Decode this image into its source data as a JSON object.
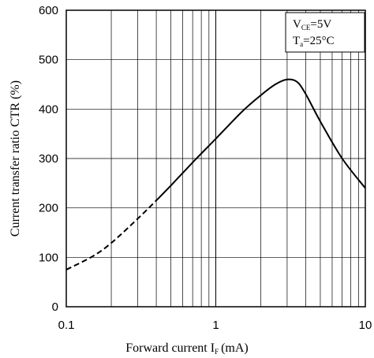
{
  "chart_data": {
    "type": "line",
    "x_scale": "log",
    "xlabel": "Forward current I",
    "xlabel_sub": "F",
    "xlabel_unit": "(mA)",
    "ylabel": "Current transfer ratio CTR (%)",
    "xlim": [
      0.1,
      10
    ],
    "ylim": [
      0,
      600
    ],
    "x_ticks": [
      0.1,
      1,
      10
    ],
    "x_tick_labels": [
      "0.1",
      "1",
      "10"
    ],
    "y_ticks": [
      0,
      100,
      200,
      300,
      400,
      500,
      600
    ],
    "y_tick_labels": [
      "0",
      "100",
      "200",
      "300",
      "400",
      "500",
      "600"
    ],
    "grid": true,
    "legend_position": "top-right",
    "conditions": [
      {
        "symbol": "V",
        "sub": "CE",
        "value": "=5V"
      },
      {
        "symbol": "T",
        "sub": "a",
        "value": "=25°C"
      }
    ],
    "series": [
      {
        "style": "dashed",
        "x": [
          0.1,
          0.15,
          0.2,
          0.3,
          0.4
        ],
        "y": [
          75,
          102,
          129,
          178,
          215
        ]
      },
      {
        "style": "solid",
        "x": [
          0.4,
          0.5,
          0.7,
          1,
          1.5,
          2,
          2.5,
          3,
          3.5,
          4,
          5,
          7,
          10
        ],
        "y": [
          215,
          245,
          292,
          340,
          395,
          428,
          450,
          460,
          455,
          430,
          375,
          300,
          240
        ]
      }
    ]
  }
}
